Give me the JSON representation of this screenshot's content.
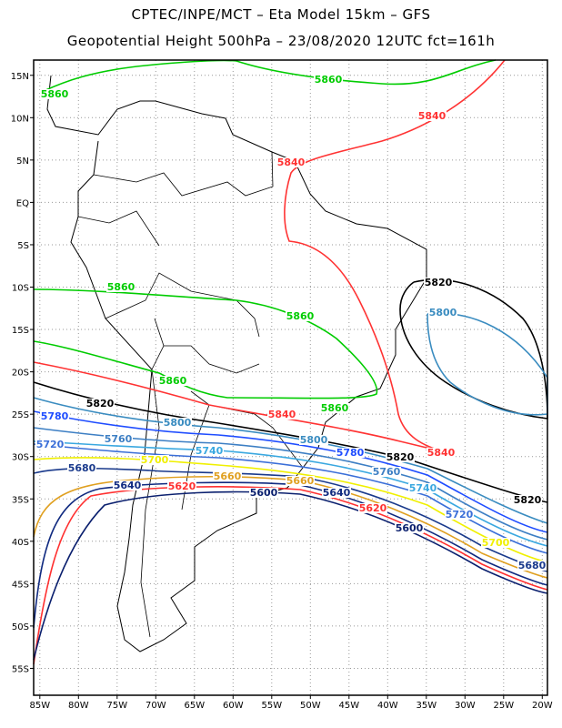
{
  "header": {
    "title_line1": "CPTEC/INPE/MCT –  Eta Model 15km – GFS",
    "title_line2": "Geopotential Height 500hPa – 23/08/2020 12UTC fct=161h"
  },
  "axes": {
    "lat_labels": [
      "15N",
      "10N",
      "5N",
      "EQ",
      "5S",
      "10S",
      "15S",
      "20S",
      "25S",
      "30S",
      "35S",
      "40S",
      "45S",
      "50S",
      "55S"
    ],
    "lon_labels": [
      "85W",
      "80W",
      "75W",
      "70W",
      "65W",
      "60W",
      "55W",
      "50W",
      "45W",
      "40W",
      "35W",
      "30W",
      "25W",
      "20W"
    ]
  },
  "contours": [
    {
      "label": "5860",
      "color": "#00cc00"
    },
    {
      "label": "5840",
      "color": "#ff3333"
    },
    {
      "label": "5820",
      "color": "#000000"
    },
    {
      "label": "5800",
      "color": "#3a8cc0"
    },
    {
      "label": "5780",
      "color": "#1f4dff"
    },
    {
      "label": "5760",
      "color": "#3d7fc4"
    },
    {
      "label": "5740",
      "color": "#3aa8e0"
    },
    {
      "label": "5720",
      "color": "#3b6fd8"
    },
    {
      "label": "5700",
      "color": "#f0f000"
    },
    {
      "label": "5680",
      "color": "#1a3a8c"
    },
    {
      "label": "5660",
      "color": "#e0a020"
    },
    {
      "label": "5640",
      "color": "#102a80"
    },
    {
      "label": "5620",
      "color": "#ff3030"
    },
    {
      "label": "5600",
      "color": "#0a1f6e"
    }
  ]
}
